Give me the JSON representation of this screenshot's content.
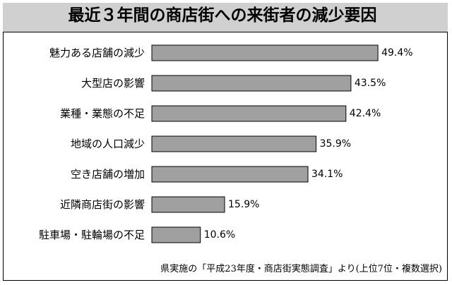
{
  "chart_data": {
    "type": "bar",
    "orientation": "horizontal",
    "title": "最近３年間の商店街への来街者の減少要因",
    "categories": [
      "魅力ある店舗の減少",
      "大型店の影響",
      "業種・業態の不足",
      "地域の人口減少",
      "空き店舗の増加",
      "近隣商店街の影響",
      "駐車場・駐輪場の不足"
    ],
    "values": [
      49.4,
      43.5,
      42.4,
      35.9,
      34.1,
      15.9,
      10.6
    ],
    "value_labels": [
      "49.4%",
      "43.5%",
      "42.4%",
      "35.9%",
      "34.1%",
      "15.9%",
      "10.6%"
    ],
    "unit": "%",
    "xlim": [
      0,
      60
    ],
    "grid": false,
    "legend": "none",
    "bar_color": "#a0a0a0",
    "bar_border_color": "#000000",
    "note": "県実施の「平成23年度・商店街実態調査」より(上位7位・複数選択)"
  },
  "colors": {
    "title_background": "#d0d0d0",
    "bar_fill": "#a0a0a0"
  }
}
